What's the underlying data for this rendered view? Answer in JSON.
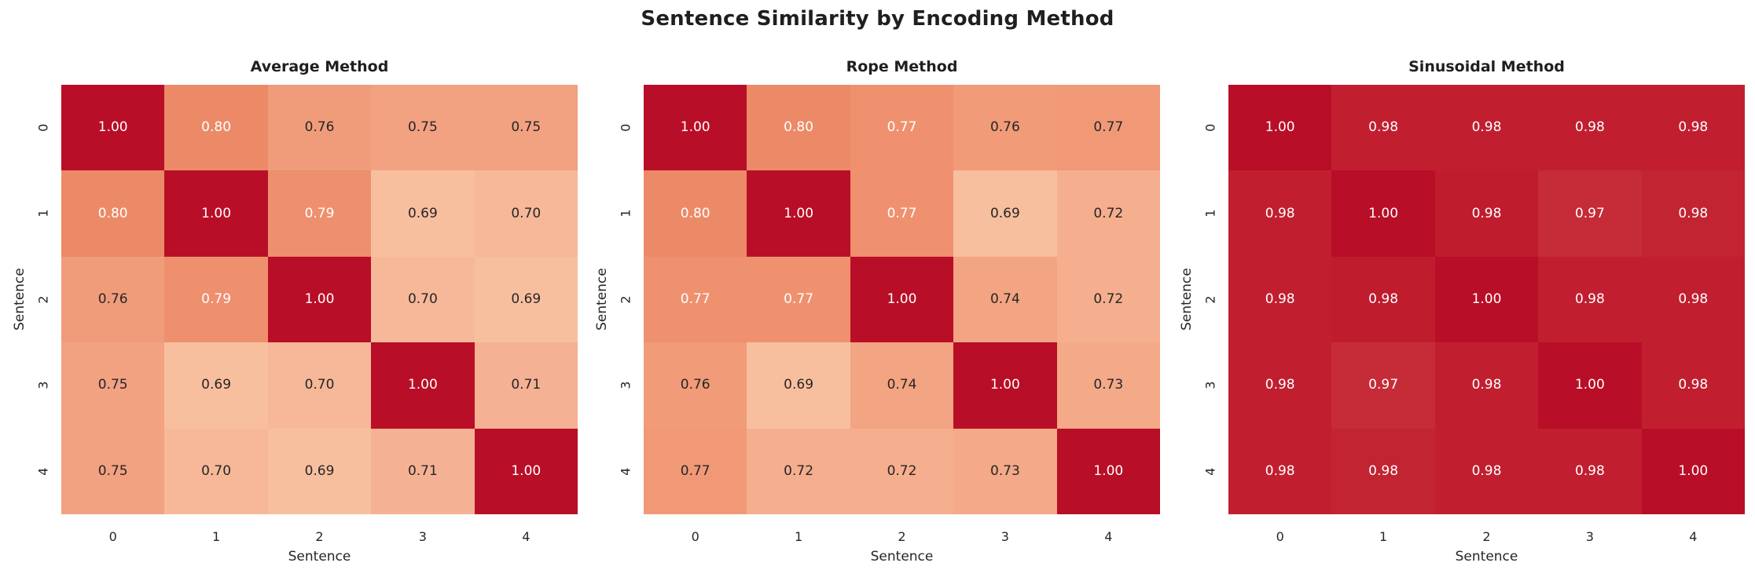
{
  "figure": {
    "title": "Sentence Similarity by Encoding Method",
    "background": "#ffffff",
    "text_color": "#262626",
    "title_color": "#1f1f1f"
  },
  "colors": {
    "annotation_light": "#ffffff",
    "annotation_dark": "#262626",
    "diagonal_max": "#b90e27",
    "low_value_peach": "#f8bf9f"
  },
  "chart_data": [
    {
      "type": "heatmap",
      "title": "Average Method",
      "xlabel": "Sentence",
      "ylabel": "Sentence",
      "x_ticks": [
        "0",
        "1",
        "2",
        "3",
        "4"
      ],
      "y_ticks": [
        "0",
        "1",
        "2",
        "3",
        "4"
      ],
      "value_range": [
        0.69,
        1.0
      ],
      "grid": false,
      "legend": "none",
      "values": [
        [
          1.0,
          0.8,
          0.76,
          0.75,
          0.75
        ],
        [
          0.8,
          1.0,
          0.79,
          0.69,
          0.7
        ],
        [
          0.76,
          0.79,
          1.0,
          0.7,
          0.69
        ],
        [
          0.75,
          0.69,
          0.7,
          1.0,
          0.71
        ],
        [
          0.75,
          0.7,
          0.69,
          0.71,
          1.0
        ]
      ],
      "cell_colors": [
        [
          "#b90e27",
          "#ec8a68",
          "#f09c7b",
          "#f2a181",
          "#f2a181"
        ],
        [
          "#ec8a68",
          "#b90e27",
          "#ee8f6e",
          "#f8bf9f",
          "#f6b898"
        ],
        [
          "#f09c7b",
          "#ee8f6e",
          "#b90e27",
          "#f6b898",
          "#f8bf9f"
        ],
        [
          "#f2a181",
          "#f8bf9f",
          "#f6b898",
          "#b90e27",
          "#f5b193"
        ],
        [
          "#f2a181",
          "#f6b898",
          "#f8bf9f",
          "#f5b193",
          "#b90e27"
        ]
      ],
      "text_colors": [
        [
          "w",
          "w",
          "d",
          "d",
          "d"
        ],
        [
          "w",
          "w",
          "w",
          "d",
          "d"
        ],
        [
          "d",
          "w",
          "w",
          "d",
          "d"
        ],
        [
          "d",
          "d",
          "d",
          "w",
          "d"
        ],
        [
          "d",
          "d",
          "d",
          "d",
          "w"
        ]
      ]
    },
    {
      "type": "heatmap",
      "title": "Rope Method",
      "xlabel": "Sentence",
      "ylabel": "Sentence",
      "x_ticks": [
        "0",
        "1",
        "2",
        "3",
        "4"
      ],
      "y_ticks": [
        "0",
        "1",
        "2",
        "3",
        "4"
      ],
      "value_range": [
        0.69,
        1.0
      ],
      "grid": false,
      "legend": "none",
      "values": [
        [
          1.0,
          0.8,
          0.77,
          0.76,
          0.77
        ],
        [
          0.8,
          1.0,
          0.77,
          0.69,
          0.72
        ],
        [
          0.77,
          0.77,
          1.0,
          0.74,
          0.72
        ],
        [
          0.76,
          0.69,
          0.74,
          1.0,
          0.73
        ],
        [
          0.77,
          0.72,
          0.72,
          0.73,
          1.0
        ]
      ],
      "cell_colors": [
        [
          "#b90e27",
          "#ec8a68",
          "#ef916f",
          "#f19b79",
          "#f19977"
        ],
        [
          "#ec8a68",
          "#b90e27",
          "#ef916f",
          "#f8bf9f",
          "#f5ae8e"
        ],
        [
          "#ef916f",
          "#ef916f",
          "#b90e27",
          "#f3a482",
          "#f5ae8e"
        ],
        [
          "#f19b79",
          "#f8bf9f",
          "#f3a482",
          "#b90e27",
          "#f4a988"
        ],
        [
          "#f19977",
          "#f5ae8e",
          "#f5ae8e",
          "#f4a988",
          "#b90e27"
        ]
      ],
      "text_colors": [
        [
          "w",
          "w",
          "w",
          "d",
          "d"
        ],
        [
          "w",
          "w",
          "w",
          "d",
          "d"
        ],
        [
          "w",
          "w",
          "w",
          "d",
          "d"
        ],
        [
          "d",
          "d",
          "d",
          "w",
          "d"
        ],
        [
          "d",
          "d",
          "d",
          "d",
          "w"
        ]
      ]
    },
    {
      "type": "heatmap",
      "title": "Sinusoidal Method",
      "xlabel": "Sentence",
      "ylabel": "Sentence",
      "x_ticks": [
        "0",
        "1",
        "2",
        "3",
        "4"
      ],
      "y_ticks": [
        "0",
        "1",
        "2",
        "3",
        "4"
      ],
      "value_range": [
        0.97,
        1.0
      ],
      "grid": false,
      "legend": "none",
      "values": [
        [
          1.0,
          0.98,
          0.98,
          0.98,
          0.98
        ],
        [
          0.98,
          1.0,
          0.98,
          0.97,
          0.98
        ],
        [
          0.98,
          0.98,
          1.0,
          0.98,
          0.98
        ],
        [
          0.98,
          0.97,
          0.98,
          1.0,
          0.98
        ],
        [
          0.98,
          0.98,
          0.98,
          0.98,
          1.0
        ]
      ],
      "cell_colors": [
        [
          "#b90e27",
          "#c11f30",
          "#c11f30",
          "#c11f30",
          "#c11f30"
        ],
        [
          "#c11f30",
          "#b90e27",
          "#bf1c2e",
          "#c62b38",
          "#c22431"
        ],
        [
          "#c11f30",
          "#bf1c2e",
          "#b90e27",
          "#c11f30",
          "#c11f30"
        ],
        [
          "#c11f30",
          "#c62b38",
          "#c11f30",
          "#b90e27",
          "#c11f30"
        ],
        [
          "#c11f30",
          "#c22431",
          "#c11f30",
          "#c11f30",
          "#b90e27"
        ]
      ],
      "text_colors": [
        [
          "w",
          "w",
          "w",
          "w",
          "w"
        ],
        [
          "w",
          "w",
          "w",
          "w",
          "w"
        ],
        [
          "w",
          "w",
          "w",
          "w",
          "w"
        ],
        [
          "w",
          "w",
          "w",
          "w",
          "w"
        ],
        [
          "w",
          "w",
          "w",
          "w",
          "w"
        ]
      ]
    }
  ]
}
